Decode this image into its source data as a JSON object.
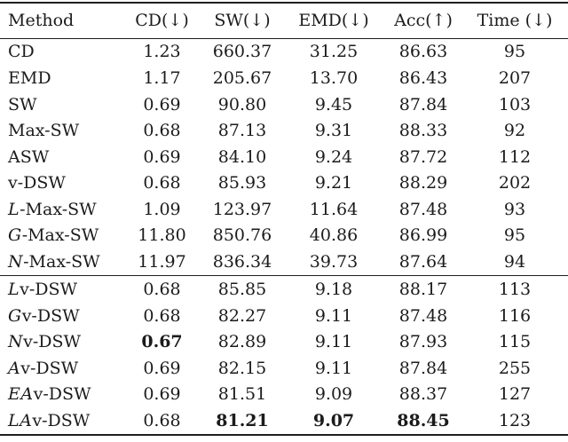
{
  "table": {
    "columns": [
      "Method",
      "CD(↓)",
      "SW(↓)",
      "EMD(↓)",
      "Acc(↑)",
      "Time (↓)"
    ],
    "column_arrows": {
      "CD": "down",
      "SW": "down",
      "EMD": "down",
      "Acc": "up",
      "Time": "down"
    },
    "section_break_after_row_index": 8,
    "rows": [
      {
        "method_cal_prefix": "",
        "method": "CD",
        "values": [
          "1.23",
          "660.37",
          "31.25",
          "86.63",
          "95"
        ],
        "bold_values": []
      },
      {
        "method_cal_prefix": "",
        "method": "EMD",
        "values": [
          "1.17",
          "205.67",
          "13.70",
          "86.43",
          "207"
        ],
        "bold_values": []
      },
      {
        "method_cal_prefix": "",
        "method": "SW",
        "values": [
          "0.69",
          "90.80",
          "9.45",
          "87.84",
          "103"
        ],
        "bold_values": []
      },
      {
        "method_cal_prefix": "",
        "method": "Max-SW",
        "values": [
          "0.68",
          "87.13",
          "9.31",
          "88.33",
          "92"
        ],
        "bold_values": []
      },
      {
        "method_cal_prefix": "",
        "method": "ASW",
        "values": [
          "0.69",
          "84.10",
          "9.24",
          "87.72",
          "112"
        ],
        "bold_values": []
      },
      {
        "method_cal_prefix": "",
        "method": "v-DSW",
        "values": [
          "0.68",
          "85.93",
          "9.21",
          "88.29",
          "202"
        ],
        "bold_values": []
      },
      {
        "method_cal_prefix": "L",
        "method": "-Max-SW",
        "values": [
          "1.09",
          "123.97",
          "11.64",
          "87.48",
          "93"
        ],
        "bold_values": []
      },
      {
        "method_cal_prefix": "G",
        "method": "-Max-SW",
        "values": [
          "11.80",
          "850.76",
          "40.86",
          "86.99",
          "95"
        ],
        "bold_values": []
      },
      {
        "method_cal_prefix": "N",
        "method": "-Max-SW",
        "values": [
          "11.97",
          "836.34",
          "39.73",
          "87.64",
          "94"
        ],
        "bold_values": []
      },
      {
        "method_cal_prefix": "L",
        "method": "v-DSW",
        "values": [
          "0.68",
          "85.85",
          "9.18",
          "88.17",
          "113"
        ],
        "bold_values": []
      },
      {
        "method_cal_prefix": "G",
        "method": "v-DSW",
        "values": [
          "0.68",
          "82.27",
          "9.11",
          "87.48",
          "116"
        ],
        "bold_values": []
      },
      {
        "method_cal_prefix": "N",
        "method": "v-DSW",
        "values": [
          "0.67",
          "82.89",
          "9.11",
          "87.93",
          "115"
        ],
        "bold_values": [
          "CD"
        ]
      },
      {
        "method_cal_prefix": "A",
        "method": "v-DSW",
        "values": [
          "0.69",
          "82.15",
          "9.11",
          "87.84",
          "255"
        ],
        "bold_values": []
      },
      {
        "method_cal_prefix": "EA",
        "method": "v-DSW",
        "values": [
          "0.69",
          "81.51",
          "9.09",
          "88.37",
          "127"
        ],
        "bold_values": []
      },
      {
        "method_cal_prefix": "LA",
        "method": "v-DSW",
        "values": [
          "0.68",
          "81.21",
          "9.07",
          "88.45",
          "123"
        ],
        "bold_values": [
          "SW",
          "EMD",
          "Acc"
        ]
      }
    ],
    "colors": {
      "text": "#1b1b1b",
      "rule": "#1e1e1e",
      "background": "#ffffff"
    }
  }
}
